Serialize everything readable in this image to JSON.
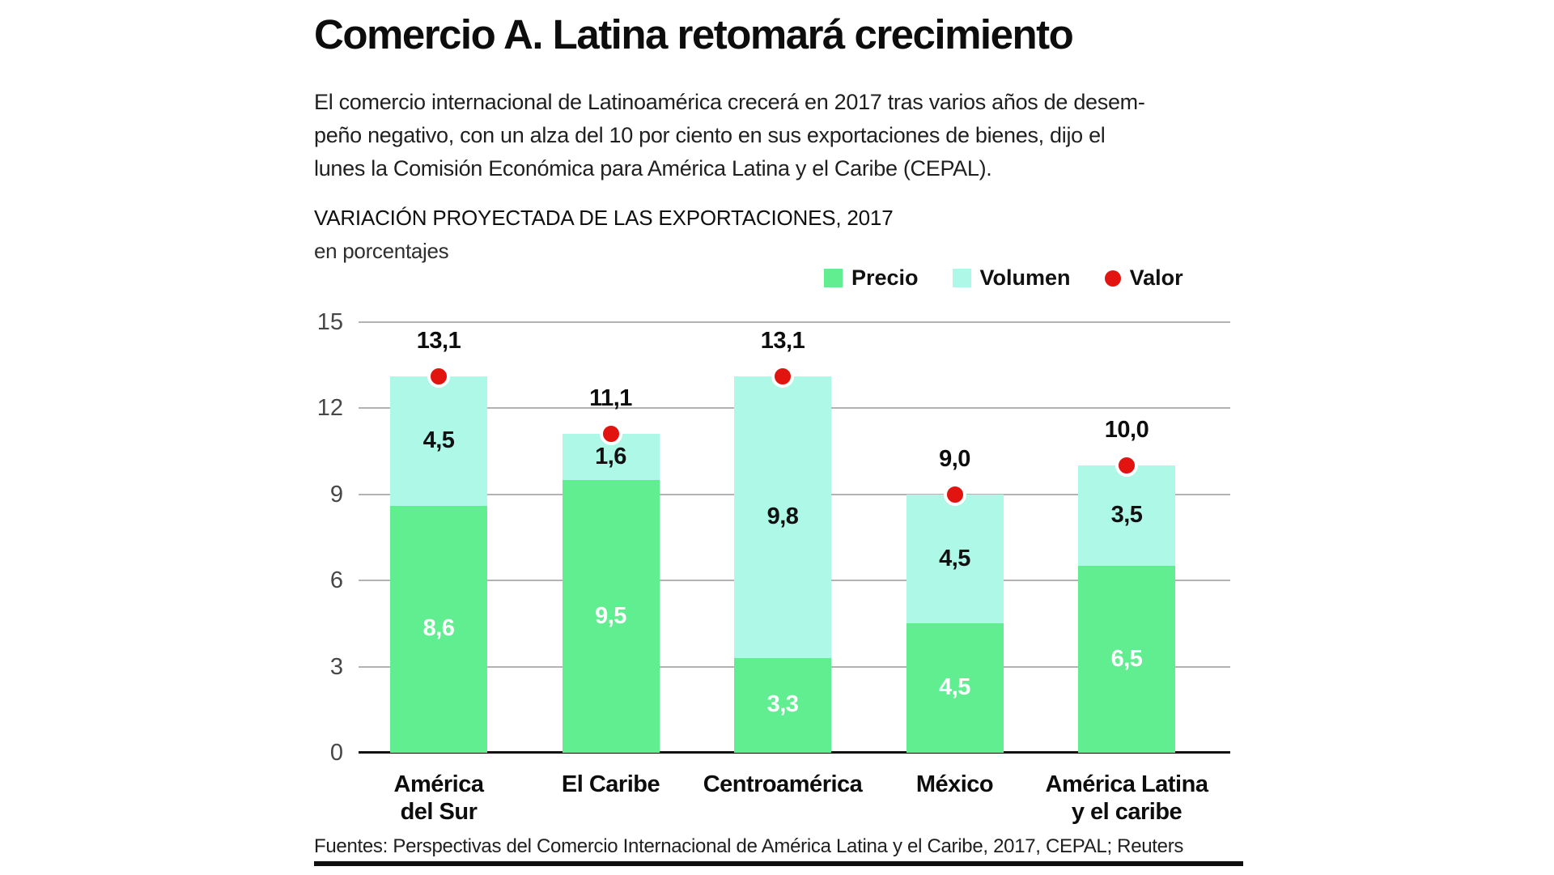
{
  "article": {
    "title": "Comercio A. Latina retomará crecimiento",
    "paragraph": "El comercio internacional de Latinoamérica crecerá en 2017 tras varios años de desem-\npeño negativo, con un alza del 10 por ciento en sus exportaciones de bienes, dijo el\nlunes la Comisión Económica para América Latina y el Caribe (CEPAL)."
  },
  "chart": {
    "title": "VARIACIÓN PROYECTADA DE LAS EXPORTACIONES, 2017",
    "subtitle": "en porcentajes",
    "source": "Fuentes: Perspectivas del Comercio Internacional de América Latina y el Caribe, 2017, CEPAL; Reuters"
  },
  "colors": {
    "precio_green": "#61ee91",
    "volumen_cyan": "#aef8e8",
    "valor_red": "#e11410",
    "gridline_gray": "#b3b3b3",
    "axis_black": "#111111"
  },
  "chart_data": {
    "type": "bar",
    "stacked": true,
    "title": "VARIACIÓN PROYECTADA DE LAS EXPORTACIONES, 2017",
    "subtitle": "en porcentajes",
    "grid": true,
    "legend_position": "top-right",
    "categories": [
      "América\ndel Sur",
      "El Caribe",
      "Centroamérica",
      "México",
      "América Latina\ny el caribe"
    ],
    "series": [
      {
        "name": "Precio",
        "color": "#61ee91",
        "values": [
          8.6,
          9.5,
          3.3,
          4.5,
          6.5
        ],
        "labels": [
          "8,6",
          "9,5",
          "3,3",
          "4,5",
          "6,5"
        ]
      },
      {
        "name": "Volumen",
        "color": "#aef8e8",
        "values": [
          4.5,
          1.6,
          9.8,
          4.5,
          3.5
        ],
        "labels": [
          "4,5",
          "1,6",
          "9,8",
          "4,5",
          "3,5"
        ]
      }
    ],
    "markers": {
      "name": "Valor",
      "color": "#e11410",
      "values": [
        13.1,
        11.1,
        13.1,
        9.0,
        10.0
      ],
      "labels": [
        "13,1",
        "11,1",
        "13,1",
        "9,0",
        "10,0"
      ]
    },
    "legend": [
      {
        "label": "Precio",
        "color": "#61ee91",
        "shape": "square"
      },
      {
        "label": "Volumen",
        "color": "#aef8e8",
        "shape": "square"
      },
      {
        "label": "Valor",
        "color": "#e11410",
        "shape": "circle"
      }
    ],
    "y_axis": {
      "ticks": [
        0,
        3,
        6,
        9,
        12,
        15
      ],
      "min": 0,
      "max": 15
    }
  }
}
